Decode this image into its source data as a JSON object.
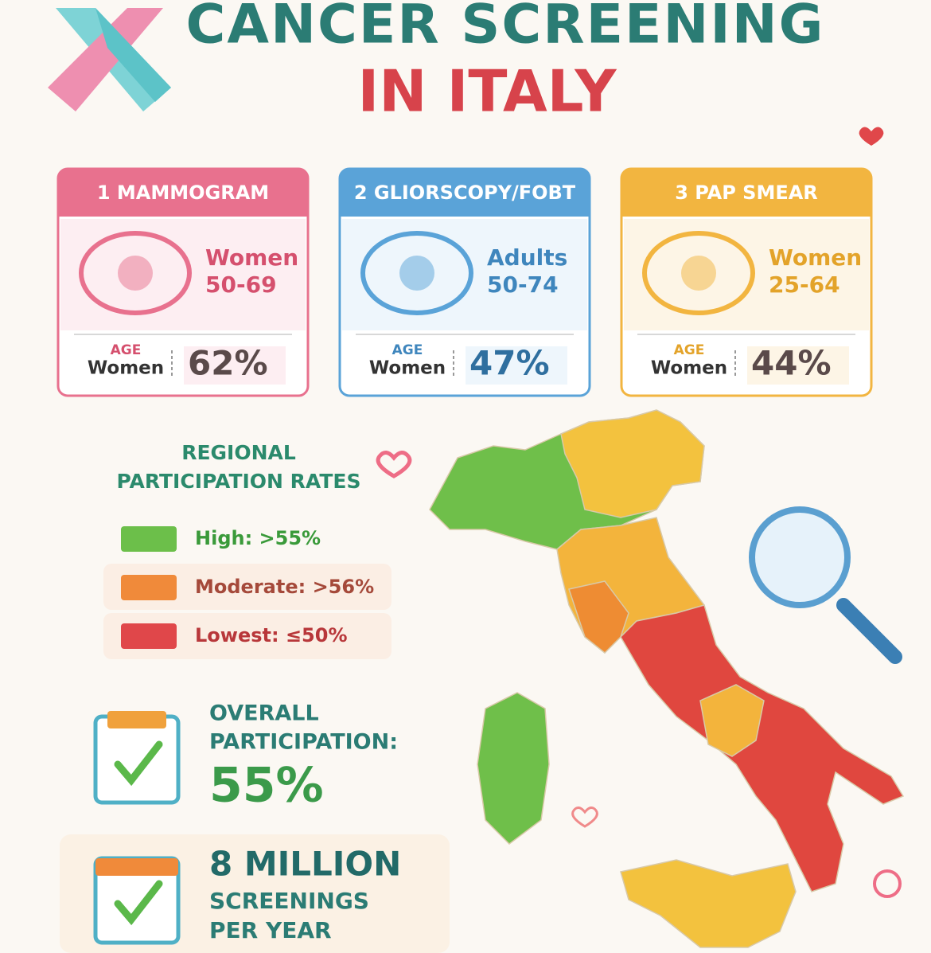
{
  "header": {
    "title_line1": "CANCER SCREENING",
    "title_line2": "IN ITALY"
  },
  "cards": [
    {
      "title": "1 MAMMOGRAM",
      "group": "Women",
      "age_range": "50-69",
      "age_label": "AGE",
      "population": "Women",
      "rate": "62%",
      "color": "#e8718e"
    },
    {
      "title": "2 GLIORSCOPY/FOBT",
      "group": "Adults",
      "age_range": "50-74",
      "age_label": "AGE",
      "population": "Women",
      "rate": "47%",
      "color": "#5aa3d8"
    },
    {
      "title": "3 PAP SMEAR",
      "group": "Women",
      "age_range": "25-64",
      "age_label": "AGE",
      "population": "Women",
      "rate": "44%",
      "color": "#f2b540"
    }
  ],
  "legend": {
    "title_line1": "REGIONAL",
    "title_line2": "PARTICIPATION RATES",
    "items": [
      {
        "label": "High: >55%",
        "color": "#6cbf4a"
      },
      {
        "label": "Moderate: >56%",
        "color": "#f08a3a"
      },
      {
        "label": "Lowest: ≤50%",
        "color": "#e0474a"
      }
    ]
  },
  "stats": {
    "overall_line1": "OVERALL",
    "overall_line2": "PARTICIPATION:",
    "overall_value": "55%",
    "volume_value": "8 MILLION",
    "volume_line1": "SCREENINGS",
    "volume_line2": "PER YEAR"
  }
}
